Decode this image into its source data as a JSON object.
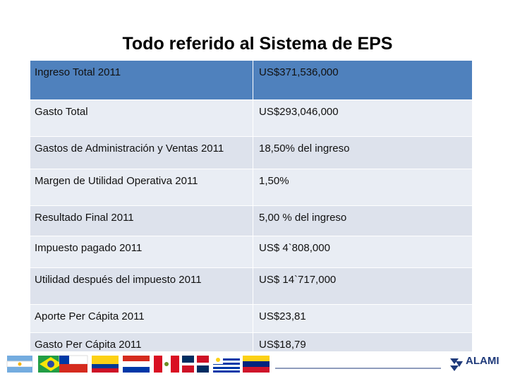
{
  "title": "Todo referido al Sistema de EPS",
  "table": {
    "rows": [
      [
        "Ingreso Total 2011",
        "US$371,536,000"
      ],
      [
        "Gasto Total",
        "US$293,046,000"
      ],
      [
        "Gastos de Administración y Ventas 2011",
        "18,50% del ingreso"
      ],
      [
        "Margen de Utilidad Operativa 2011",
        "1,50%"
      ],
      [
        "Resultado Final 2011",
        "5,00 % del ingreso"
      ],
      [
        "Impuesto pagado 2011",
        "US$ 4`808,000"
      ],
      [
        "Utilidad después del impuesto 2011",
        "US$ 14`717,000"
      ],
      [
        "Aporte  Per Cápita 2011",
        "US$23,81"
      ],
      [
        "Gasto  Per  Cápita 2011",
        "US$18,79"
      ]
    ]
  },
  "footer": {
    "logo": "ALAMI"
  }
}
